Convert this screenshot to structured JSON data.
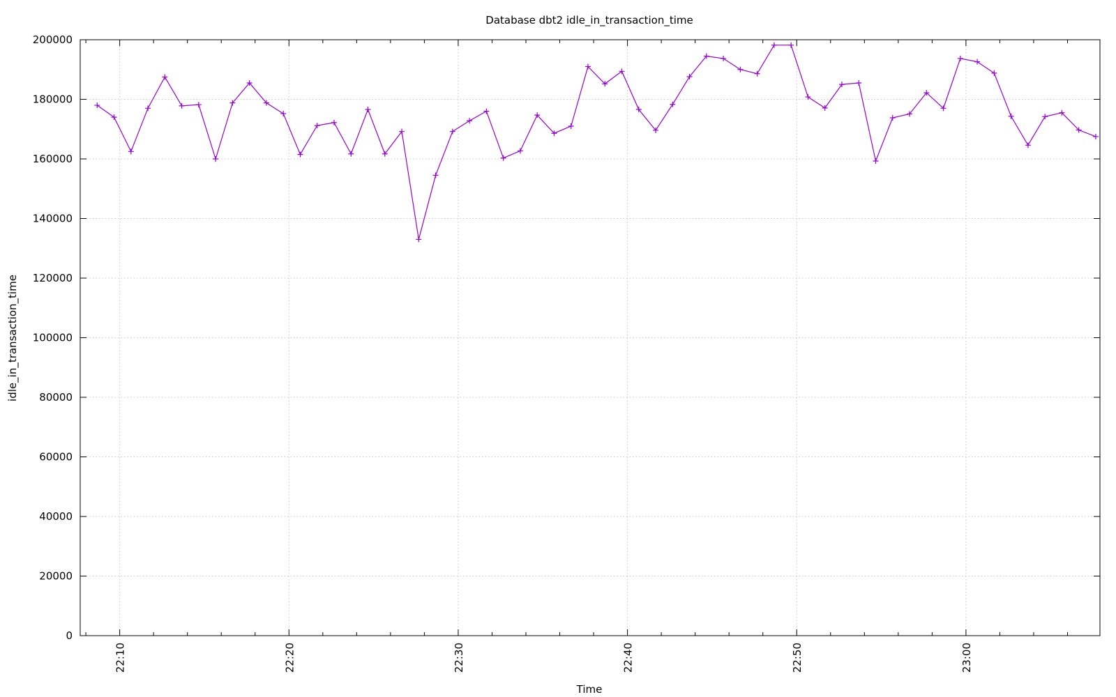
{
  "chart_data": {
    "type": "line",
    "title": "Database dbt2 idle_in_transaction_time",
    "xlabel": "Time",
    "ylabel": "idle_in_transaction_time",
    "ylim": [
      0,
      200000
    ],
    "yticks": [
      0,
      20000,
      40000,
      60000,
      80000,
      100000,
      120000,
      140000,
      160000,
      180000,
      200000
    ],
    "xrange": [
      "22:07:40",
      "22:67:55"
    ],
    "xticks": [
      "22:10",
      "22:20",
      "22:30",
      "22:40",
      "22:50",
      "23:00"
    ],
    "grid": true,
    "colors": {
      "series": "#9400d3",
      "grid": "#c8c8c8",
      "axis": "#000000"
    },
    "marker": "plus",
    "series": [
      {
        "x": [
          "22:08:40",
          "22:09:40",
          "22:10:40",
          "22:11:40",
          "22:12:40",
          "22:13:40",
          "22:14:40",
          "22:15:40",
          "22:16:40",
          "22:17:40",
          "22:18:40",
          "22:19:40",
          "22:20:40",
          "22:21:40",
          "22:22:40",
          "22:23:40",
          "22:24:40",
          "22:25:40",
          "22:26:40",
          "22:27:40",
          "22:28:40",
          "22:29:40",
          "22:30:40",
          "22:31:40",
          "22:32:40",
          "22:33:40",
          "22:34:40",
          "22:35:40",
          "22:36:40",
          "22:37:40",
          "22:38:40",
          "22:39:40",
          "22:40:40",
          "22:41:40",
          "22:42:40",
          "22:43:40",
          "22:44:40",
          "22:45:40",
          "22:46:40",
          "22:47:40",
          "22:48:40",
          "22:49:40",
          "22:50:40",
          "22:51:40",
          "22:52:40",
          "22:53:40",
          "22:54:40",
          "22:55:40",
          "22:56:40",
          "22:57:40",
          "22:58:40",
          "22:59:40",
          "23:00:40",
          "23:01:40",
          "23:02:40",
          "23:03:40",
          "23:04:40",
          "23:05:40",
          "23:06:40",
          "23:07:40"
        ],
        "values": [
          178000,
          174000,
          162500,
          177000,
          187500,
          177800,
          178200,
          160000,
          178800,
          185500,
          178800,
          175200,
          161500,
          171200,
          172200,
          161700,
          176600,
          161700,
          169200,
          133000,
          154500,
          169200,
          172800,
          176000,
          160300,
          162700,
          174700,
          168600,
          171000,
          191000,
          185200,
          189400,
          176600,
          169600,
          178300,
          187600,
          194500,
          193700,
          190000,
          188600,
          198200,
          198200,
          180800,
          177100,
          185000,
          185500,
          159300,
          173800,
          175100,
          182200,
          177000,
          193700,
          192600,
          188800,
          174300,
          164600,
          174200,
          175500,
          169700,
          167500
        ]
      }
    ]
  }
}
